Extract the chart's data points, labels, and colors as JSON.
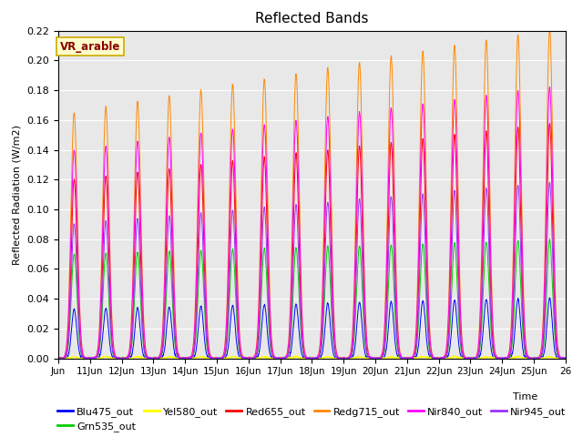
{
  "title": "Reflected Bands",
  "xlabel": "Time",
  "ylabel": "Reflected Radiation (W/m2)",
  "annotation": "VR_arable",
  "ylim": [
    0,
    0.22
  ],
  "series": [
    {
      "name": "Blu475_out",
      "color": "#0000ff"
    },
    {
      "name": "Grn535_out",
      "color": "#00cc00"
    },
    {
      "name": "Yel580_out",
      "color": "#ffff00"
    },
    {
      "name": "Red655_out",
      "color": "#ff0000"
    },
    {
      "name": "Redg715_out",
      "color": "#ff8800"
    },
    {
      "name": "Nir840_out",
      "color": "#ff00ff"
    },
    {
      "name": "Nir945_out",
      "color": "#9933ff"
    }
  ],
  "background_color": "#e8e8e8",
  "fig_bg": "#ffffff",
  "tick_labels": [
    "Jun",
    "11Jun",
    "12Jun",
    "13Jun",
    "14Jun",
    "15Jun",
    "16Jun",
    "17Jun",
    "18Jun",
    "19Jun",
    "20Jun",
    "21Jun",
    "22Jun",
    "23Jun",
    "24Jun",
    "25Jun",
    "26"
  ]
}
